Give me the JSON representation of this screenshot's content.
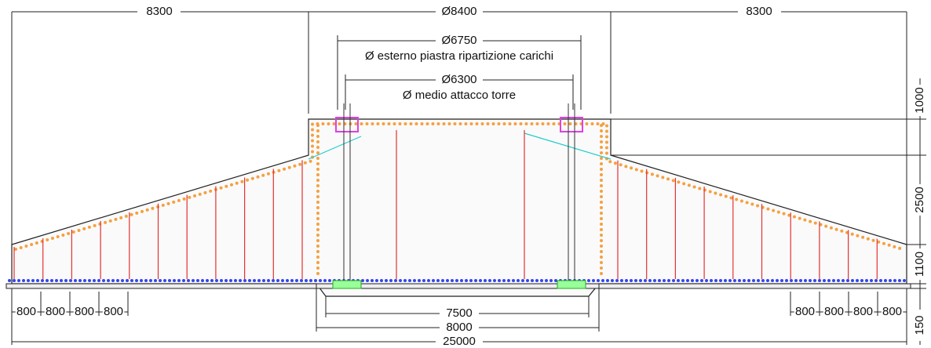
{
  "dimensions": {
    "top_left": "8300",
    "top_center": "Ø8400",
    "top_right": "8300",
    "plate_diameter": "Ø6750",
    "plate_label": "Ø esterno piastra ripartizione carichi",
    "tower_diameter": "Ø6300",
    "tower_label": "Ø medio attacco torre",
    "heights": [
      "1000",
      "2500",
      "1100",
      "150"
    ],
    "bottom_spacing_left": [
      "800",
      "800",
      "800",
      "800"
    ],
    "bottom_spacing_right": [
      "800",
      "800",
      "800",
      "800"
    ],
    "recess_inner": "7500",
    "recess_outer": "8000",
    "total_width": "25000"
  }
}
